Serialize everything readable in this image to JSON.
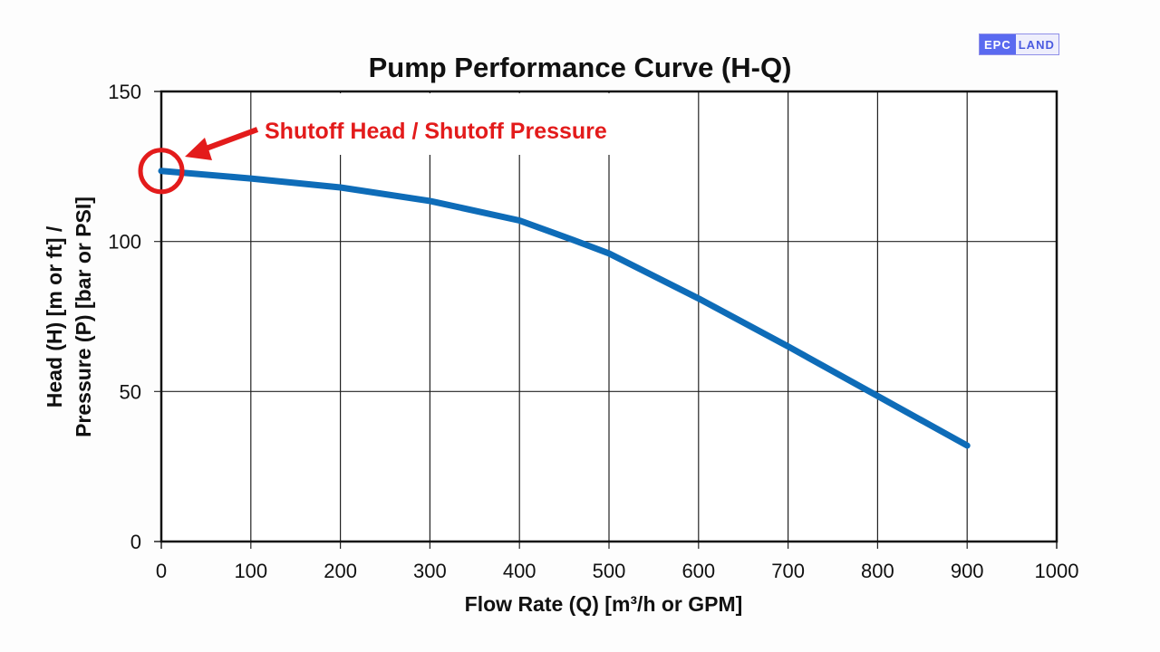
{
  "chart_data": {
    "type": "line",
    "title": "Pump Performance Curve (H-Q)",
    "xlabel": "Flow Rate (Q) [m³/h or GPM]",
    "ylabel_line1": "Head (H) [m or ft] /",
    "ylabel_line2": "Pressure (P) [bar or PSI]",
    "xlim": [
      0,
      1000
    ],
    "ylim": [
      0,
      150
    ],
    "xticks": [
      0,
      100,
      200,
      300,
      400,
      500,
      600,
      700,
      800,
      900,
      1000
    ],
    "yticks": [
      0,
      50,
      100,
      150
    ],
    "grid": true,
    "series_color": "#0e6cb8",
    "x": [
      0,
      100,
      200,
      300,
      400,
      460,
      500,
      600,
      700,
      800,
      900
    ],
    "y": [
      123.5,
      121,
      118,
      113.5,
      107,
      100.5,
      96,
      81,
      65,
      48.5,
      32
    ],
    "annotation": {
      "text": "Shutoff Head / Shutoff Pressure",
      "color": "#e31b1b",
      "x": 0,
      "y": 123.5
    }
  },
  "logo": {
    "part1": "EPC",
    "part2": "LAND"
  }
}
